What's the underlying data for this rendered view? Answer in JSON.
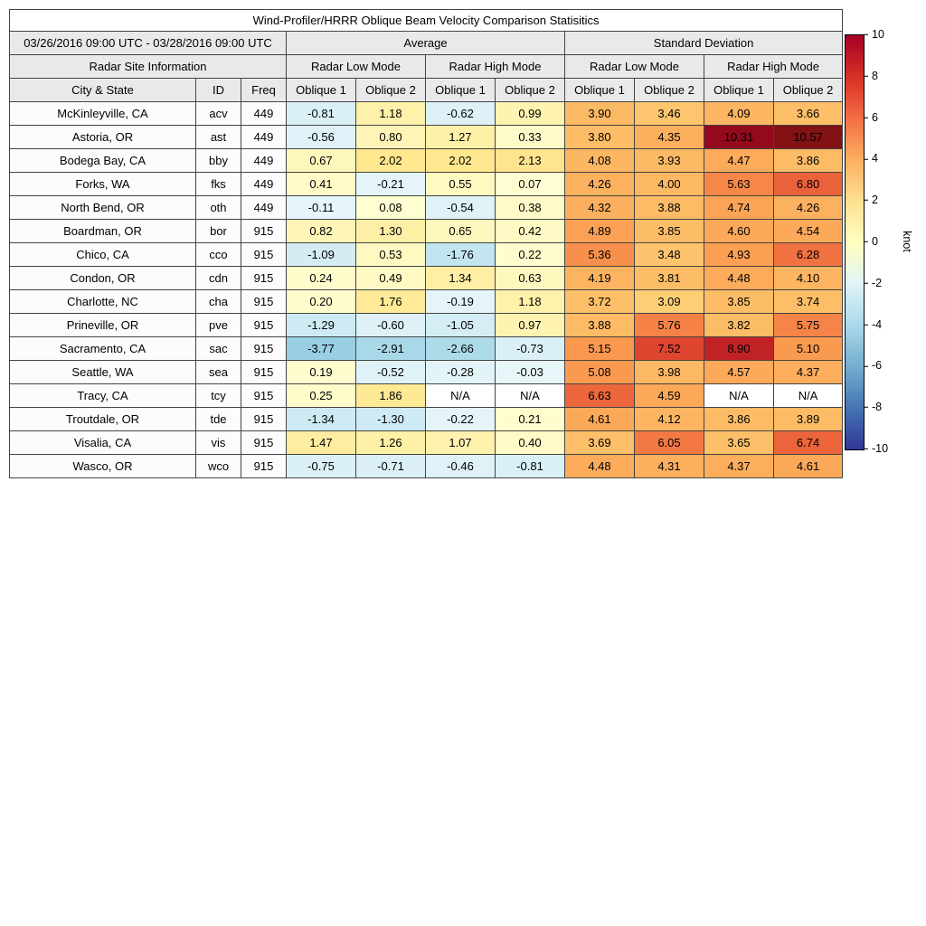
{
  "title": "Wind-Profiler/HRRR Oblique Beam Velocity Comparison Statisitics",
  "header": {
    "date_range": "03/26/2016 09:00 UTC - 03/28/2016 09:00 UTC",
    "group_average": "Average",
    "group_std": "Standard Deviation",
    "site_info": "Radar Site Information",
    "mode_labels": [
      "Radar Low Mode",
      "Radar High Mode",
      "Radar Low Mode",
      "Radar High Mode"
    ],
    "col_headers": [
      "City & State",
      "ID",
      "Freq",
      "Oblique 1",
      "Oblique 2",
      "Oblique 1",
      "Oblique 2",
      "Oblique 1",
      "Oblique 2",
      "Oblique 1",
      "Oblique 2"
    ]
  },
  "chart_data": {
    "type": "heatmap",
    "title": "Wind-Profiler/HRRR Oblique Beam Velocity Comparison Statisitics",
    "value_unit": "knot",
    "value_range": [
      -10,
      10
    ],
    "value_columns": [
      "avg_low_oblique1",
      "avg_low_oblique2",
      "avg_high_oblique1",
      "avg_high_oblique2",
      "std_low_oblique1",
      "std_low_oblique2",
      "std_high_oblique1",
      "std_high_oblique2"
    ],
    "rows": [
      {
        "city": "McKinleyville, CA",
        "id": "acv",
        "freq": "449",
        "values": [
          "-0.81",
          "1.18",
          "-0.62",
          "0.99",
          "3.90",
          "3.46",
          "4.09",
          "3.66"
        ]
      },
      {
        "city": "Astoria, OR",
        "id": "ast",
        "freq": "449",
        "values": [
          "-0.56",
          "0.80",
          "1.27",
          "0.33",
          "3.80",
          "4.35",
          "10.31",
          "10.57"
        ]
      },
      {
        "city": "Bodega Bay, CA",
        "id": "bby",
        "freq": "449",
        "values": [
          "0.67",
          "2.02",
          "2.02",
          "2.13",
          "4.08",
          "3.93",
          "4.47",
          "3.86"
        ]
      },
      {
        "city": "Forks, WA",
        "id": "fks",
        "freq": "449",
        "values": [
          "0.41",
          "-0.21",
          "0.55",
          "0.07",
          "4.26",
          "4.00",
          "5.63",
          "6.80"
        ]
      },
      {
        "city": "North Bend, OR",
        "id": "oth",
        "freq": "449",
        "values": [
          "-0.11",
          "0.08",
          "-0.54",
          "0.38",
          "4.32",
          "3.88",
          "4.74",
          "4.26"
        ]
      },
      {
        "city": "Boardman, OR",
        "id": "bor",
        "freq": "915",
        "values": [
          "0.82",
          "1.30",
          "0.65",
          "0.42",
          "4.89",
          "3.85",
          "4.60",
          "4.54"
        ]
      },
      {
        "city": "Chico, CA",
        "id": "cco",
        "freq": "915",
        "values": [
          "-1.09",
          "0.53",
          "-1.76",
          "0.22",
          "5.36",
          "3.48",
          "4.93",
          "6.28"
        ]
      },
      {
        "city": "Condon, OR",
        "id": "cdn",
        "freq": "915",
        "values": [
          "0.24",
          "0.49",
          "1.34",
          "0.63",
          "4.19",
          "3.81",
          "4.48",
          "4.10"
        ]
      },
      {
        "city": "Charlotte, NC",
        "id": "cha",
        "freq": "915",
        "values": [
          "0.20",
          "1.76",
          "-0.19",
          "1.18",
          "3.72",
          "3.09",
          "3.85",
          "3.74"
        ]
      },
      {
        "city": "Prineville, OR",
        "id": "pve",
        "freq": "915",
        "values": [
          "-1.29",
          "-0.60",
          "-1.05",
          "0.97",
          "3.88",
          "5.76",
          "3.82",
          "5.75"
        ]
      },
      {
        "city": "Sacramento, CA",
        "id": "sac",
        "freq": "915",
        "values": [
          "-3.77",
          "-2.91",
          "-2.66",
          "-0.73",
          "5.15",
          "7.52",
          "8.90",
          "5.10"
        ]
      },
      {
        "city": "Seattle, WA",
        "id": "sea",
        "freq": "915",
        "values": [
          "0.19",
          "-0.52",
          "-0.28",
          "-0.03",
          "5.08",
          "3.98",
          "4.57",
          "4.37"
        ]
      },
      {
        "city": "Tracy, CA",
        "id": "tcy",
        "freq": "915",
        "values": [
          "0.25",
          "1.86",
          "N/A",
          "N/A",
          "6.63",
          "4.59",
          "N/A",
          "N/A"
        ]
      },
      {
        "city": "Troutdale, OR",
        "id": "tde",
        "freq": "915",
        "values": [
          "-1.34",
          "-1.30",
          "-0.22",
          "0.21",
          "4.61",
          "4.12",
          "3.86",
          "3.89"
        ]
      },
      {
        "city": "Visalia, CA",
        "id": "vis",
        "freq": "915",
        "values": [
          "1.47",
          "1.26",
          "1.07",
          "0.40",
          "3.69",
          "6.05",
          "3.65",
          "6.74"
        ]
      },
      {
        "city": "Wasco, OR",
        "id": "wco",
        "freq": "915",
        "values": [
          "-0.75",
          "-0.71",
          "-0.46",
          "-0.81",
          "4.48",
          "4.31",
          "4.37",
          "4.61"
        ]
      }
    ]
  },
  "colorbar": {
    "label": "knot",
    "min": -10,
    "max": 10,
    "ticks": [
      "10",
      "8",
      "6",
      "4",
      "2",
      "0",
      "-2",
      "-4",
      "-6",
      "-8",
      "-10"
    ],
    "colors": [
      "#a50026",
      "#d73027",
      "#f46d43",
      "#fdae61",
      "#fee090",
      "#ffffbf",
      "#e0f3f8",
      "#abd9e9",
      "#74add1",
      "#4575b4",
      "#313695"
    ]
  },
  "cell_color_anchors": [
    [
      -10,
      "#313695"
    ],
    [
      -8,
      "#4575b4"
    ],
    [
      -6,
      "#74add1"
    ],
    [
      -4,
      "#93cde2"
    ],
    [
      -2,
      "#bce2ee"
    ],
    [
      -1,
      "#d6eef5"
    ],
    [
      -0.001,
      "#e8f6f9"
    ],
    [
      0,
      "#ffffd5"
    ],
    [
      1,
      "#fef3b0"
    ],
    [
      2,
      "#fee78f"
    ],
    [
      3,
      "#fdd076"
    ],
    [
      4,
      "#fdb863"
    ],
    [
      5,
      "#fb9d52"
    ],
    [
      6,
      "#f47a44"
    ],
    [
      7,
      "#e85c38"
    ],
    [
      8,
      "#d73027"
    ],
    [
      9,
      "#be2126"
    ],
    [
      10,
      "#a50026"
    ],
    [
      10.6,
      "#801312"
    ]
  ],
  "na_color": "#ffffff"
}
